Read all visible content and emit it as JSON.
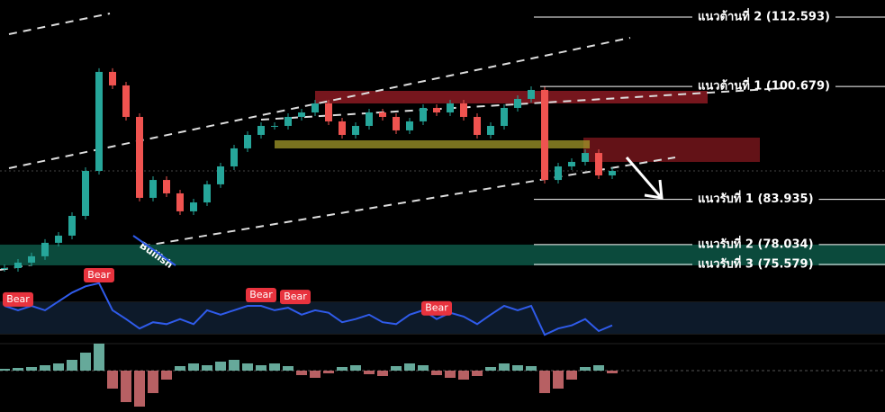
{
  "chart_data": {
    "type": "candlestick",
    "log_scale": true,
    "ylim": [
      74.38,
      115.73
    ],
    "up_color": "#26a69a",
    "down_color": "#ef5350",
    "closes": [
      75.14,
      75.8,
      76.58,
      78.26,
      79.17,
      81.73,
      87.87,
      103.07,
      100.85,
      95.86,
      84.14,
      86.6,
      84.75,
      82.33,
      83.52,
      85.99,
      88.51,
      91.12,
      93.12,
      94.48,
      94.48,
      95.86,
      96.55,
      97.97,
      95.17,
      93.12,
      94.48,
      96.55,
      95.86,
      93.8,
      95.17,
      97.26,
      96.55,
      97.97,
      95.86,
      93.12,
      94.48,
      97.26,
      98.68,
      100.12,
      86.6,
      88.51,
      89.16,
      90.45,
      87.24,
      87.87
    ],
    "levels": [
      {
        "label": "แนวต้านที่ 2 (112.593)",
        "value": 112.593
      },
      {
        "label": "แนวต้านที่ 1 (100.679)",
        "value": 100.679
      },
      {
        "label": "แนวรับที่ 1 (83.935)",
        "value": 83.935
      },
      {
        "label": "แนวรับที่ 2 (78.034)",
        "value": 78.034
      },
      {
        "label": "แนวรับที่ 3 (75.579)",
        "value": 75.579
      }
    ],
    "bullish_label": "Bullish",
    "oscillator": {
      "color": "#2f5bea",
      "ylim": [
        0,
        100
      ],
      "values": [
        50,
        43,
        50,
        43,
        57,
        71,
        81,
        86,
        43,
        29,
        14,
        24,
        21,
        29,
        21,
        43,
        36,
        43,
        50,
        50,
        43,
        47,
        36,
        43,
        39,
        24,
        29,
        36,
        24,
        21,
        36,
        43,
        29,
        39,
        33,
        21,
        36,
        50,
        43,
        50,
        4,
        14,
        19,
        29,
        10,
        19
      ],
      "signals": [
        "Bear",
        "Bear",
        "Bear",
        "Bear",
        "Bear"
      ]
    },
    "histogram": {
      "ylim": [
        -45,
        45
      ],
      "values": [
        2,
        3,
        4,
        6,
        8,
        12,
        20,
        30,
        -20,
        -35,
        -40,
        -25,
        -10,
        5,
        8,
        6,
        10,
        12,
        8,
        6,
        8,
        5,
        -5,
        -8,
        -3,
        4,
        6,
        -4,
        -6,
        5,
        8,
        6,
        -5,
        -8,
        -10,
        -6,
        4,
        8,
        6,
        5,
        -25,
        -20,
        -10,
        4,
        6,
        -3
      ]
    }
  }
}
